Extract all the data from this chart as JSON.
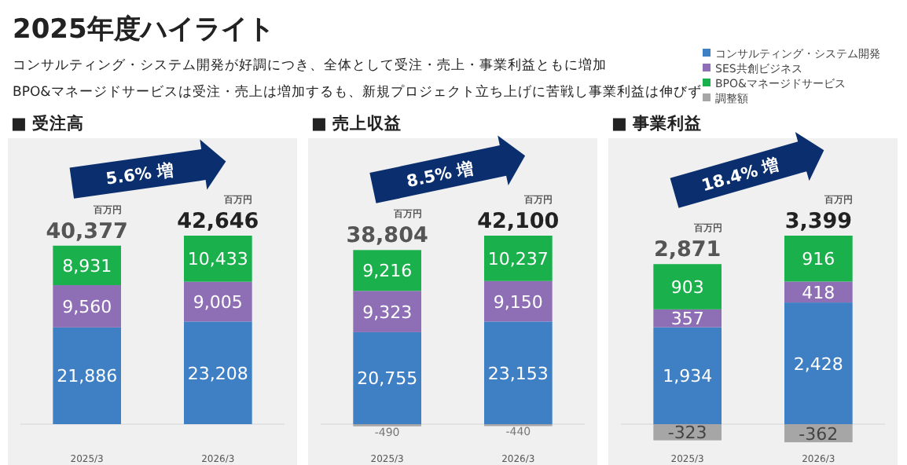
{
  "chart_data": [
    {
      "type": "other",
      "title": "2025年度ハイライト",
      "annotations": [
        "コンサルティング・システム開発が好調につき、全体として受注・売上・事業利益ともに増加",
        "BPO&マネージドサービスは受注・売上は増加するも、新規プロジェクト立ち上げに苦戦し事業利益は伸びず"
      ]
    },
    {
      "type": "bar",
      "title": "■ 受注高",
      "categories": [
        "2025/3",
        "2026/3"
      ],
      "stacked": true,
      "tick_labels": "x",
      "totals": [
        "40,377",
        "42,646"
      ],
      "annotations": [
        "5.6% 増",
        "百万円",
        "百万円"
      ],
      "series": [
        {
          "color": "#3f7fc4",
          "values": [
            21886,
            23208
          ],
          "value_labels": [
            "21,886",
            "23,208"
          ]
        },
        {
          "color": "#8e6fb5",
          "values": [
            9560,
            9005
          ],
          "value_labels": [
            "9,560",
            "9,005"
          ]
        },
        {
          "color": "#1ab04c",
          "values": [
            8931,
            10433
          ],
          "value_labels": [
            "8,931",
            "10,433"
          ]
        }
      ]
    },
    {
      "type": "bar",
      "title": "■ 売上収益",
      "categories": [
        "2025/3",
        "2026/3"
      ],
      "stacked": true,
      "tick_labels": "x",
      "totals": [
        "38,804",
        "42,100"
      ],
      "annotations": [
        "8.5% 増",
        "百万円",
        "百万円"
      ],
      "series": [
        {
          "color": "#3f7fc4",
          "values": [
            20755,
            23153
          ],
          "value_labels": [
            "20,755",
            "23,153"
          ]
        },
        {
          "color": "#8e6fb5",
          "values": [
            9323,
            9150
          ],
          "value_labels": [
            "9,323",
            "9,150"
          ]
        },
        {
          "color": "#1ab04c",
          "values": [
            9216,
            10237
          ],
          "value_labels": [
            "9,216",
            "10,237"
          ]
        },
        {
          "color": "#a6a6a6",
          "values": [
            -490,
            -440
          ],
          "value_labels": [
            "-490",
            "-440"
          ]
        }
      ]
    },
    {
      "type": "bar",
      "title": "■ 事業利益",
      "categories": [
        "2025/3",
        "2026/3"
      ],
      "stacked": true,
      "tick_labels": "x",
      "legend": "top right",
      "totals": [
        "2,871",
        "3,399"
      ],
      "annotations": [
        "18.4% 増",
        "百万円",
        "百万円"
      ],
      "series": [
        {
          "name": "コンサルティング・システム開発",
          "color": "#3f7fc4",
          "values": [
            1934,
            2428
          ],
          "value_labels": [
            "1,934",
            "2,428"
          ]
        },
        {
          "name": "SES共創ビジネス",
          "color": "#8e6fb5",
          "values": [
            357,
            418
          ],
          "value_labels": [
            "357",
            "418"
          ]
        },
        {
          "name": "BPO&マネージドサービス",
          "color": "#1ab04c",
          "values": [
            903,
            916
          ],
          "value_labels": [
            "903",
            "916"
          ]
        },
        {
          "name": "調整額",
          "color": "#a6a6a6",
          "values": [
            -323,
            -362
          ],
          "value_labels": [
            "-323",
            "-362"
          ]
        }
      ]
    }
  ]
}
